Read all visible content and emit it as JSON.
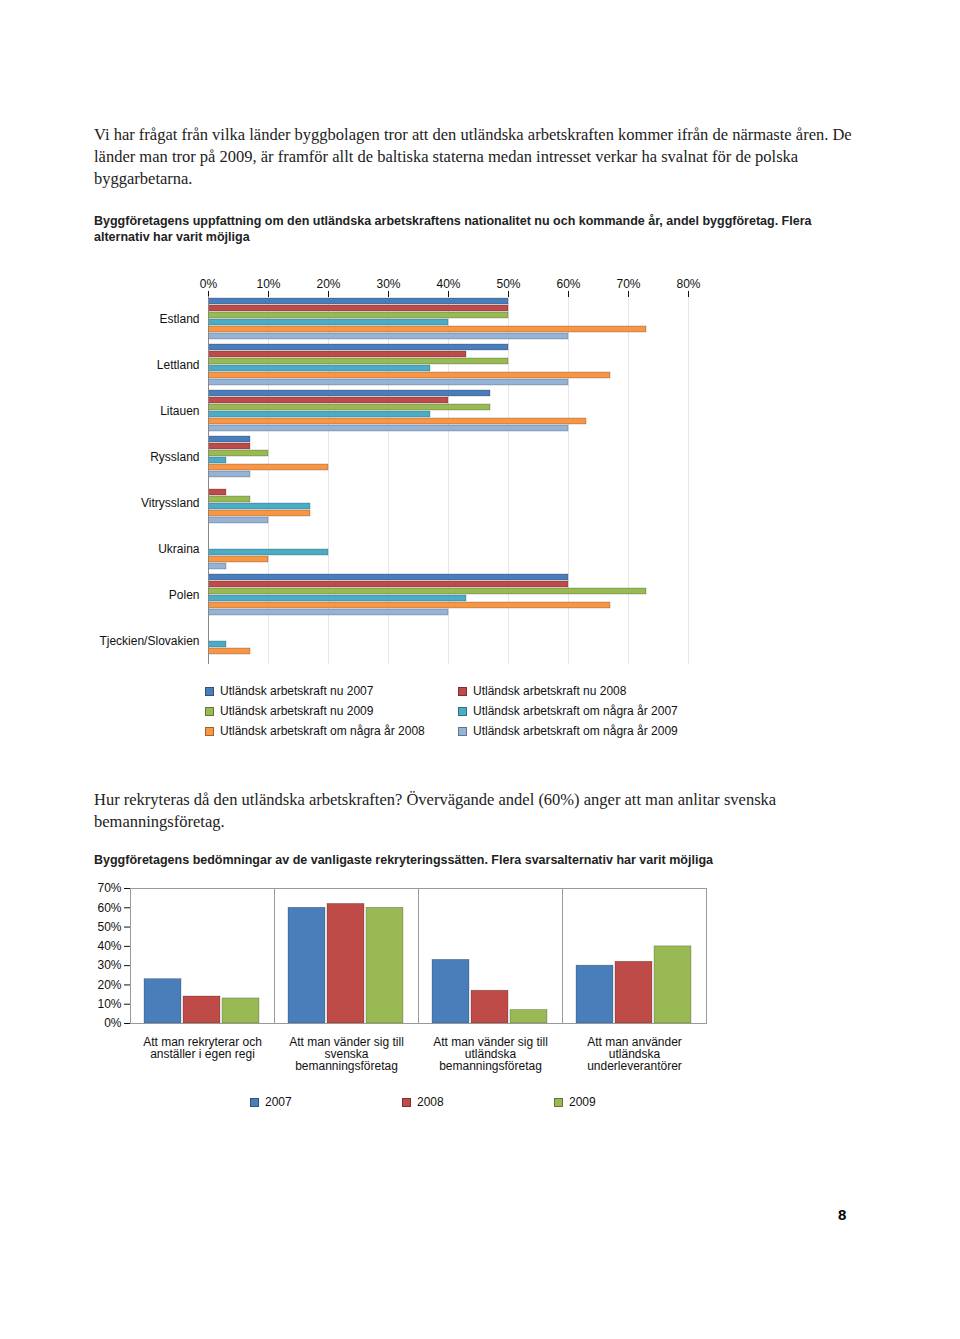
{
  "document": {
    "paragraphs": [
      "Vi har frågat från vilka länder byggbolagen tror att den utländska arbetskraften kommer ifrån de närmaste åren. De länder man tror på 2009, är framför allt de baltiska staterna medan intresset verkar ha svalnat för de polska byggarbetarna.",
      "Hur rekryteras då den utländska arbetskraften? Övervägande andel (60%) anger att man anlitar svenska bemanningsföretag."
    ],
    "page_number": "8"
  },
  "chart_data": [
    {
      "type": "bar",
      "orientation": "horizontal",
      "grid": true,
      "legend": "bottom",
      "title": "Byggföretagens uppfattning om den utländska arbetskraftens nationalitet nu och kommande år, andel byggföretag. Flera alternativ har varit möjliga",
      "categories": [
        "Estland",
        "Lettland",
        "Litauen",
        "Ryssland",
        "Vitryssland",
        "Ukraina",
        "Polen",
        "Tjeckien/Slovakien"
      ],
      "series": [
        {
          "name": "Utländsk arbetskraft nu 2007",
          "color": "#4a7ebb",
          "values": [
            50,
            50,
            47,
            7,
            0,
            0,
            60,
            0
          ]
        },
        {
          "name": "Utländsk arbetskraft nu 2008",
          "color": "#be4b48",
          "values": [
            50,
            43,
            40,
            7,
            3,
            0,
            60,
            0
          ]
        },
        {
          "name": "Utländsk arbetskraft nu 2009",
          "color": "#98b954",
          "values": [
            50,
            50,
            47,
            10,
            7,
            0,
            73,
            0
          ]
        },
        {
          "name": "Utländsk arbetskraft om några år 2007",
          "color": "#4bacc6",
          "values": [
            40,
            37,
            37,
            3,
            17,
            20,
            43,
            3
          ]
        },
        {
          "name": "Utländsk arbetskraft om några år 2008",
          "color": "#f79646",
          "values": [
            73,
            67,
            63,
            20,
            17,
            10,
            67,
            7
          ]
        },
        {
          "name": "Utländsk arbetskraft om några år 2009",
          "color": "#95b3d7",
          "values": [
            60,
            60,
            60,
            7,
            10,
            3,
            40,
            0
          ]
        }
      ],
      "xlim": [
        0,
        80
      ],
      "xticks": [
        {
          "value": 0,
          "label": "0%"
        },
        {
          "value": 10,
          "label": "10%"
        },
        {
          "value": 20,
          "label": "20%"
        },
        {
          "value": 30,
          "label": "30%"
        },
        {
          "value": 40,
          "label": "40%"
        },
        {
          "value": 50,
          "label": "50%"
        },
        {
          "value": 60,
          "label": "60%"
        },
        {
          "value": 70,
          "label": "70%"
        },
        {
          "value": 80,
          "label": "80%"
        }
      ]
    },
    {
      "type": "bar",
      "grid": false,
      "legend": "bottom",
      "title": "Byggföretagens bedömningar av de vanligaste rekryteringssätten. Flera svarsalternativ har varit möjliga",
      "categories": [
        "Att man rekryterar och anställer i egen regi",
        "Att man vänder sig till svenska bemanningsföretag",
        "Att man vänder sig till utländska bemanningsföretag",
        "Att man använder utländska underleverantörer"
      ],
      "series": [
        {
          "name": "2007",
          "color": "#4a7ebb",
          "values": [
            23,
            60,
            33,
            30
          ]
        },
        {
          "name": "2008",
          "color": "#be4b48",
          "values": [
            14,
            62,
            17,
            32
          ]
        },
        {
          "name": "2009",
          "color": "#98b954",
          "values": [
            13,
            60,
            7,
            40
          ]
        }
      ],
      "ylim": [
        0,
        70
      ],
      "yticks": [
        {
          "value": 0,
          "label": "0%"
        },
        {
          "value": 10,
          "label": "10%"
        },
        {
          "value": 20,
          "label": "20%"
        },
        {
          "value": 30,
          "label": "30%"
        },
        {
          "value": 40,
          "label": "40%"
        },
        {
          "value": 50,
          "label": "50%"
        },
        {
          "value": 60,
          "label": "60%"
        },
        {
          "value": 70,
          "label": "70%"
        }
      ]
    }
  ]
}
